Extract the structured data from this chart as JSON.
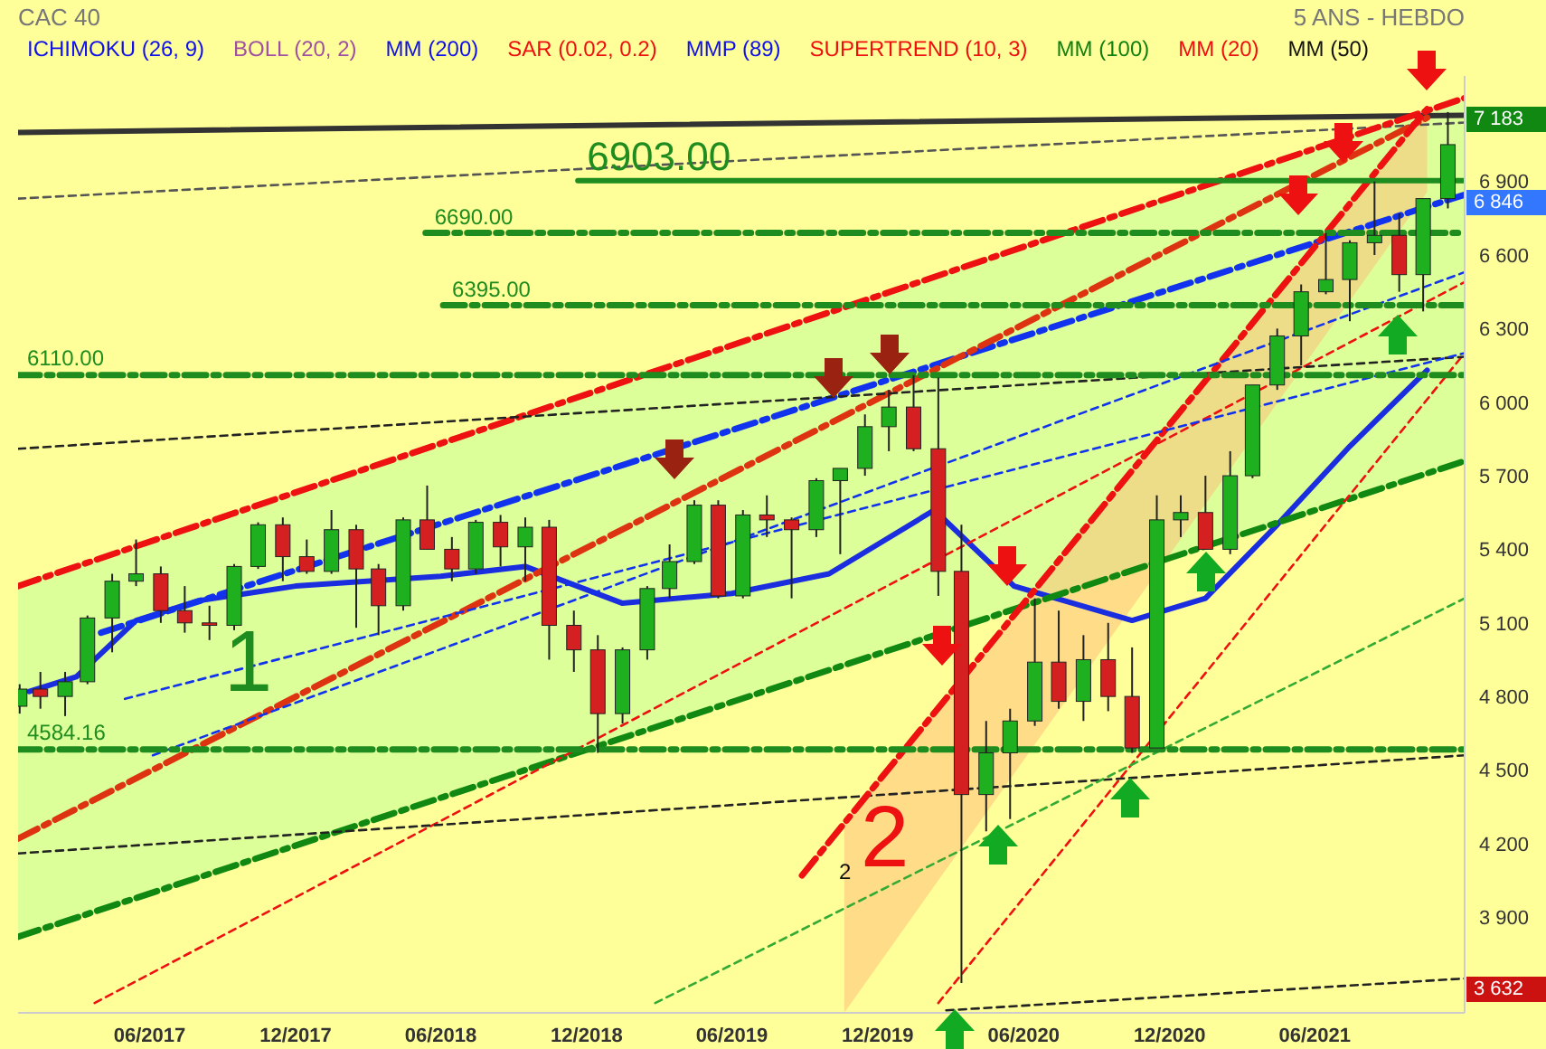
{
  "chart_data": {
    "type": "candlestick",
    "title": "CAC 40",
    "subtitle": "5 ANS - HEBDO",
    "x": [
      "2016-12-20",
      "2017-01-15",
      "2017-02-15",
      "2017-03-15",
      "2017-04-15",
      "2017-05-15",
      "2017-06-15",
      "2017-07-15",
      "2017-08-15",
      "2017-09-15",
      "2017-10-15",
      "2017-11-15",
      "2017-12-15",
      "2018-01-15",
      "2018-02-15",
      "2018-03-15",
      "2018-04-15",
      "2018-05-15",
      "2018-06-15",
      "2018-07-15",
      "2018-08-15",
      "2018-09-15",
      "2018-10-15",
      "2018-11-15",
      "2018-12-15",
      "2019-01-15",
      "2019-02-15",
      "2019-03-15",
      "2019-04-15",
      "2019-05-15",
      "2019-06-15",
      "2019-07-15",
      "2019-08-15",
      "2019-09-15",
      "2019-10-15",
      "2019-11-15",
      "2019-12-15",
      "2020-01-15",
      "2020-02-15",
      "2020-03-15",
      "2020-04-15",
      "2020-05-15",
      "2020-06-15",
      "2020-07-15",
      "2020-08-15",
      "2020-09-15",
      "2020-10-15",
      "2020-11-15",
      "2020-12-15",
      "2021-01-15",
      "2021-02-15",
      "2021-03-15",
      "2021-04-15",
      "2021-05-15",
      "2021-06-15",
      "2021-07-15",
      "2021-08-15",
      "2021-09-15",
      "2021-10-15",
      "2021-11-15"
    ],
    "ohlc": [
      [
        4760,
        4850,
        4730,
        4830
      ],
      [
        4830,
        4900,
        4750,
        4800
      ],
      [
        4800,
        4900,
        4720,
        4860
      ],
      [
        4860,
        5130,
        4850,
        5120
      ],
      [
        5120,
        5300,
        4980,
        5270
      ],
      [
        5270,
        5440,
        5250,
        5300
      ],
      [
        5300,
        5330,
        5100,
        5150
      ],
      [
        5150,
        5250,
        5060,
        5100
      ],
      [
        5100,
        5170,
        5030,
        5090
      ],
      [
        5090,
        5340,
        5070,
        5330
      ],
      [
        5330,
        5510,
        5320,
        5500
      ],
      [
        5500,
        5530,
        5270,
        5370
      ],
      [
        5370,
        5440,
        5300,
        5310
      ],
      [
        5310,
        5560,
        5300,
        5480
      ],
      [
        5480,
        5500,
        5080,
        5320
      ],
      [
        5320,
        5340,
        5050,
        5170
      ],
      [
        5170,
        5530,
        5150,
        5520
      ],
      [
        5520,
        5660,
        5400,
        5400
      ],
      [
        5400,
        5450,
        5270,
        5320
      ],
      [
        5320,
        5520,
        5300,
        5510
      ],
      [
        5510,
        5540,
        5330,
        5410
      ],
      [
        5410,
        5530,
        5270,
        5490
      ],
      [
        5490,
        5520,
        4950,
        5090
      ],
      [
        5090,
        5150,
        4900,
        4990
      ],
      [
        4990,
        5050,
        4570,
        4730
      ],
      [
        4730,
        5000,
        4690,
        4990
      ],
      [
        4990,
        5250,
        4950,
        5240
      ],
      [
        5240,
        5420,
        5200,
        5350
      ],
      [
        5350,
        5600,
        5340,
        5580
      ],
      [
        5580,
        5600,
        5200,
        5210
      ],
      [
        5210,
        5560,
        5200,
        5540
      ],
      [
        5540,
        5620,
        5450,
        5520
      ],
      [
        5520,
        5530,
        5200,
        5480
      ],
      [
        5480,
        5690,
        5450,
        5680
      ],
      [
        5680,
        5730,
        5380,
        5730
      ],
      [
        5730,
        5950,
        5700,
        5900
      ],
      [
        5900,
        6050,
        5800,
        5980
      ],
      [
        5980,
        6110,
        5800,
        5810
      ],
      [
        5810,
        6100,
        5210,
        5310
      ],
      [
        5310,
        5500,
        3632,
        4400
      ],
      [
        4400,
        4700,
        4250,
        4570
      ],
      [
        4570,
        4750,
        4300,
        4700
      ],
      [
        4700,
        5200,
        4680,
        4940
      ],
      [
        4940,
        5150,
        4750,
        4780
      ],
      [
        4780,
        5050,
        4700,
        4950
      ],
      [
        4950,
        5100,
        4740,
        4800
      ],
      [
        4800,
        5000,
        4570,
        4590
      ],
      [
        4590,
        5620,
        4590,
        5520
      ],
      [
        5520,
        5620,
        5450,
        5550
      ],
      [
        5550,
        5700,
        5400,
        5400
      ],
      [
        5400,
        5800,
        5380,
        5700
      ],
      [
        5700,
        6070,
        5690,
        6070
      ],
      [
        6070,
        6300,
        6050,
        6270
      ],
      [
        6270,
        6480,
        6150,
        6450
      ],
      [
        6450,
        6690,
        6440,
        6500
      ],
      [
        6500,
        6660,
        6330,
        6650
      ],
      [
        6650,
        6900,
        6600,
        6680
      ],
      [
        6680,
        6770,
        6450,
        6520
      ],
      [
        6520,
        6830,
        6370,
        6830
      ],
      [
        6830,
        7183,
        6790,
        7050
      ]
    ],
    "series": [
      {
        "type": "line",
        "color": "#1a2ee0",
        "line_style": "solid",
        "x": [
          "2017-01-01",
          "2017-03-01",
          "2017-05-15",
          "2017-08-01",
          "2017-12-01",
          "2018-06-01",
          "2018-09-15",
          "2019-01-15",
          "2019-06-01",
          "2019-10-01",
          "2020-02-10",
          "2020-05-20",
          "2020-10-15",
          "2021-01-15",
          "2021-04-15",
          "2021-07-15",
          "2021-10-20"
        ],
        "values": [
          4820,
          4880,
          5110,
          5190,
          5250,
          5290,
          5330,
          5180,
          5220,
          5300,
          5560,
          5250,
          5110,
          5200,
          5500,
          5820,
          6130
        ]
      },
      {
        "type": "line",
        "color": "#333333",
        "line_style": "solid",
        "x": [
          "2016-12-18",
          "2021-12-06"
        ],
        "values": [
          7100,
          7170
        ]
      },
      {
        "type": "line",
        "color": "#555555",
        "line_style": "dotted",
        "x": [
          "2016-12-18",
          "2021-12-06"
        ],
        "values": [
          6830,
          7140
        ]
      },
      {
        "type": "line",
        "color": "#ee1111",
        "line_style": "dashed",
        "x": [
          "2016-12-18",
          "2021-12-06"
        ],
        "values": [
          5250,
          7240
        ],
        "lower": [
          3820,
          5760
        ],
        "upper": [
          5250,
          7240
        ]
      },
      {
        "type": "line",
        "color": "#1133ee",
        "line_style": "dashed",
        "x": [
          "2017-04-01",
          "2021-12-06"
        ],
        "values": [
          5060,
          6846
        ]
      },
      {
        "type": "line",
        "color": "#118811",
        "line_style": "dashed",
        "x": [
          "2016-12-18",
          "2021-12-06"
        ],
        "values": [
          3820,
          5760
        ]
      },
      {
        "type": "line",
        "color": "#dd3311",
        "line_style": "dashed",
        "x": [
          "2016-12-18",
          "2021-10-20"
        ],
        "values": [
          4220,
          7160
        ]
      },
      {
        "type": "line",
        "color": "#ee1111",
        "line_style": "dotted",
        "x": [
          "2017-03-24",
          "2021-12-06"
        ],
        "values": [
          3550,
          6490
        ]
      },
      {
        "type": "line",
        "color": "#ee1111",
        "line_style": "dotted",
        "x": [
          "2020-02-15",
          "2021-12-06"
        ],
        "values": [
          3550,
          6200
        ]
      },
      {
        "type": "line",
        "color": "#222222",
        "line_style": "dotted",
        "x": [
          "2016-12-18",
          "2021-12-06"
        ],
        "values": [
          5810,
          6185
        ]
      },
      {
        "type": "line",
        "color": "#222222",
        "line_style": "dotted",
        "x": [
          "2016-12-18",
          "2021-12-06"
        ],
        "values": [
          4160,
          4560
        ]
      },
      {
        "type": "line",
        "color": "#222222",
        "line_style": "dotted",
        "x": [
          "2020-02-25",
          "2021-12-06"
        ],
        "values": [
          3520,
          3650
        ]
      },
      {
        "type": "line",
        "color": "#ee1111",
        "line_style": "dashed",
        "x": [
          "2019-08-28",
          "2019-10-20",
          "2021-10-20"
        ],
        "values": [
          4070,
          4283,
          7195
        ],
        "lower": [
          null,
          3510,
          6857
        ],
        "upper": [
          null,
          4283,
          7195
        ]
      },
      {
        "type": "line",
        "color": "#1133ee",
        "line_style": "dotted",
        "x": [
          "2017-05-01",
          "2021-12-06"
        ],
        "values": [
          4790,
          6200
        ]
      },
      {
        "type": "line",
        "color": "#1133ee",
        "line_style": "dotted",
        "x": [
          "2017-06-05",
          "2021-12-06"
        ],
        "values": [
          4560,
          6530
        ]
      },
      {
        "type": "line",
        "color": "#33aa33",
        "line_style": "dotted",
        "x": [
          "2019-02-25",
          "2021-12-06"
        ],
        "values": [
          3550,
          5200
        ]
      },
      {
        "type": "line",
        "color": "#1e8c1e",
        "line_style": "solid",
        "x": [
          "2018-11-20",
          "2021-12-06"
        ],
        "values": [
          6903,
          6903
        ]
      },
      {
        "type": "line",
        "color": "#1e8c1e",
        "line_style": "dashed",
        "x": [
          "2018-05-13",
          "2021-12-06"
        ],
        "values": [
          6690,
          6690
        ]
      },
      {
        "type": "line",
        "color": "#1e8c1e",
        "line_style": "dashed",
        "x": [
          "2018-06-04",
          "2021-12-06"
        ],
        "values": [
          6395,
          6395
        ]
      },
      {
        "type": "line",
        "color": "#1e8c1e",
        "line_style": "dashed",
        "x": [
          "2016-12-18",
          "2021-12-06"
        ],
        "values": [
          6110,
          6110
        ]
      },
      {
        "type": "line",
        "color": "#1e8c1e",
        "line_style": "dashed",
        "x": [
          "2016-12-18",
          "2021-12-06"
        ],
        "values": [
          4584.16,
          4584.16
        ]
      }
    ],
    "xlim": [
      "2016-12-18",
      "2021-12-06"
    ],
    "xticks": [
      {
        "value": "2017-06-01",
        "label": "06/2017"
      },
      {
        "value": "2017-12-01",
        "label": "12/2017"
      },
      {
        "value": "2018-06-01",
        "label": "06/2018"
      },
      {
        "value": "2018-12-01",
        "label": "12/2018"
      },
      {
        "value": "2019-06-01",
        "label": "06/2019"
      },
      {
        "value": "2019-12-01",
        "label": "12/2019"
      },
      {
        "value": "2020-06-01",
        "label": "06/2020"
      },
      {
        "value": "2020-12-01",
        "label": "12/2020"
      },
      {
        "value": "2021-06-01",
        "label": "06/2021"
      }
    ],
    "ylim": [
      3510,
      7330
    ],
    "yticks": [
      {
        "value": 3900,
        "label": "3 900"
      },
      {
        "value": 4200,
        "label": "4 200"
      },
      {
        "value": 4500,
        "label": "4 500"
      },
      {
        "value": 4800,
        "label": "4 800"
      },
      {
        "value": 5100,
        "label": "5 100"
      },
      {
        "value": 5400,
        "label": "5 400"
      },
      {
        "value": 5700,
        "label": "5 700"
      },
      {
        "value": 6000,
        "label": "6 000"
      },
      {
        "value": 6300,
        "label": "6 300"
      },
      {
        "value": 6600,
        "label": "6 600"
      },
      {
        "value": 6900,
        "label": "6 900"
      }
    ],
    "marker": "none",
    "annotations": [
      "ICHIMOKU (26, 9)",
      "BOLL (20, 2)",
      "MM (200)",
      "SAR (0.02, 0.2)",
      "MMP (89)",
      "SUPERTREND (10, 3)",
      "MM (100)",
      "MM (20)",
      "MM (50)",
      {
        "text": "6903.00",
        "x": "2018-11-20",
        "y": 6903
      },
      {
        "text": "6690.00",
        "x": "2018-05-13",
        "y": 6690
      },
      {
        "text": "6395.00",
        "x": "2018-06-04",
        "y": 6395
      },
      {
        "text": "6110.00",
        "x": "2016-12-18",
        "y": 6110
      },
      {
        "text": "4584.16",
        "x": "2016-12-18",
        "y": 4584.16
      },
      {
        "text": "1",
        "x": "2017-10-05",
        "y": 4910
      },
      "2",
      "2",
      {
        "text": "7 183",
        "x": "2021-12-06",
        "y": 7183
      },
      {
        "text": "6 846",
        "x": "2021-12-06",
        "y": 6846
      },
      {
        "text": "3 632",
        "x": "2021-12-06",
        "y": 3632
      }
    ]
  }
}
